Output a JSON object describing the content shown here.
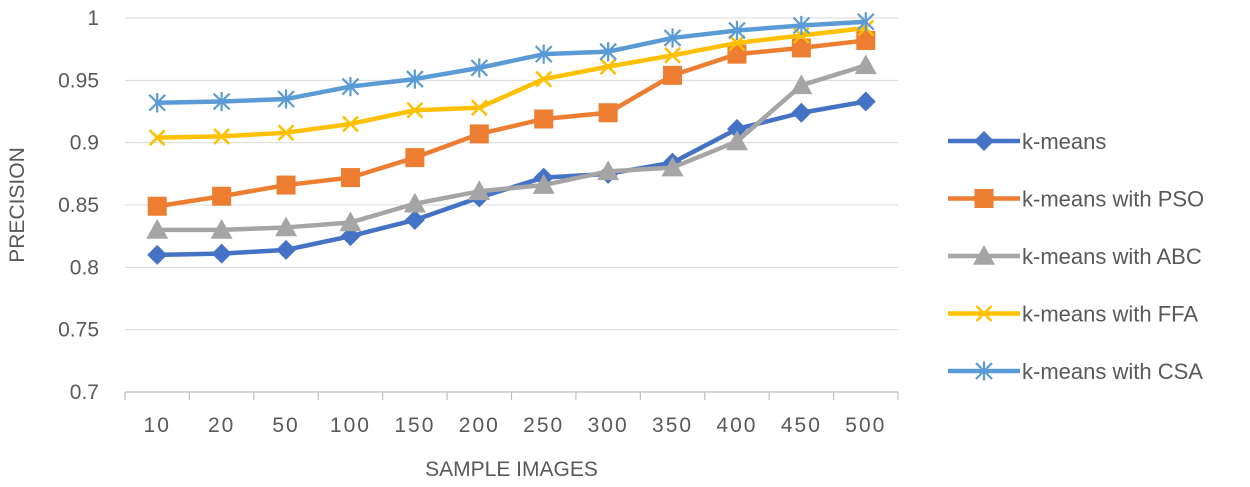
{
  "chart_data": {
    "type": "line",
    "title": "",
    "xlabel": "SAMPLE IMAGES",
    "ylabel": "PRECISION",
    "categories": [
      "10",
      "20",
      "50",
      "100",
      "150",
      "200",
      "250",
      "300",
      "350",
      "400",
      "450",
      "500"
    ],
    "ylim": [
      0.7,
      1.0
    ],
    "yticks": [
      "0.7",
      "0.75",
      "0.8",
      "0.85",
      "0.9",
      "0.95",
      "1"
    ],
    "grid": true,
    "legend_position": "right",
    "series": [
      {
        "name": "k-means",
        "color": "#4472C4",
        "marker": "diamond",
        "values": [
          0.81,
          0.811,
          0.814,
          0.825,
          0.838,
          0.856,
          0.872,
          0.875,
          0.884,
          0.911,
          0.924,
          0.933
        ]
      },
      {
        "name": "k-means with PSO",
        "color": "#ED7D31",
        "marker": "square",
        "values": [
          0.849,
          0.857,
          0.866,
          0.872,
          0.888,
          0.907,
          0.919,
          0.924,
          0.954,
          0.971,
          0.976,
          0.982
        ]
      },
      {
        "name": "k-means with ABC",
        "color": "#A5A5A5",
        "marker": "triangle",
        "values": [
          0.83,
          0.83,
          0.832,
          0.836,
          0.851,
          0.861,
          0.866,
          0.877,
          0.88,
          0.901,
          0.946,
          0.962
        ]
      },
      {
        "name": "k-means with FFA",
        "color": "#FFC000",
        "marker": "x",
        "values": [
          0.904,
          0.905,
          0.908,
          0.915,
          0.926,
          0.928,
          0.951,
          0.961,
          0.97,
          0.98,
          0.986,
          0.992
        ]
      },
      {
        "name": "k-means with CSA",
        "color": "#5B9BD5",
        "marker": "asterisk",
        "values": [
          0.932,
          0.933,
          0.935,
          0.945,
          0.951,
          0.96,
          0.971,
          0.973,
          0.984,
          0.99,
          0.994,
          0.997
        ]
      }
    ]
  }
}
